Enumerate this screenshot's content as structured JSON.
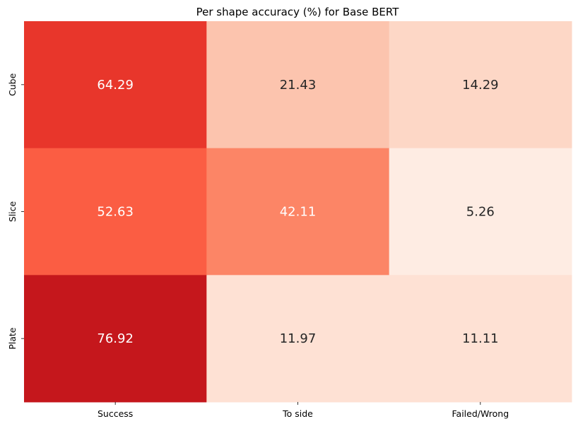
{
  "chart_data": {
    "type": "heatmap",
    "title": "Per shape accuracy (%) for Base BERT",
    "x_categories": [
      "Success",
      "To side",
      "Failed/Wrong"
    ],
    "y_categories": [
      "Cube",
      "Slice",
      "Plate"
    ],
    "values": [
      [
        64.29,
        21.43,
        14.29
      ],
      [
        52.63,
        42.11,
        5.26
      ],
      [
        76.92,
        11.97,
        11.11
      ]
    ],
    "cell_labels": [
      [
        "64.29",
        "21.43",
        "14.29"
      ],
      [
        "52.63",
        "42.11",
        "5.26"
      ],
      [
        "76.92",
        "11.97",
        "11.11"
      ]
    ],
    "cell_colors": [
      [
        "#e8362b",
        "#fcc4ae",
        "#fdd7c6"
      ],
      [
        "#fb5d43",
        "#fc8566",
        "#feece3"
      ],
      [
        "#c5171c",
        "#fee1d4",
        "#fee1d4"
      ]
    ],
    "cell_text_colors": [
      [
        "#ffffff",
        "#262626",
        "#262626"
      ],
      [
        "#ffffff",
        "#ffffff",
        "#262626"
      ],
      [
        "#ffffff",
        "#262626",
        "#262626"
      ]
    ],
    "colormap": "Reds",
    "colorbar": false,
    "grid": false
  }
}
